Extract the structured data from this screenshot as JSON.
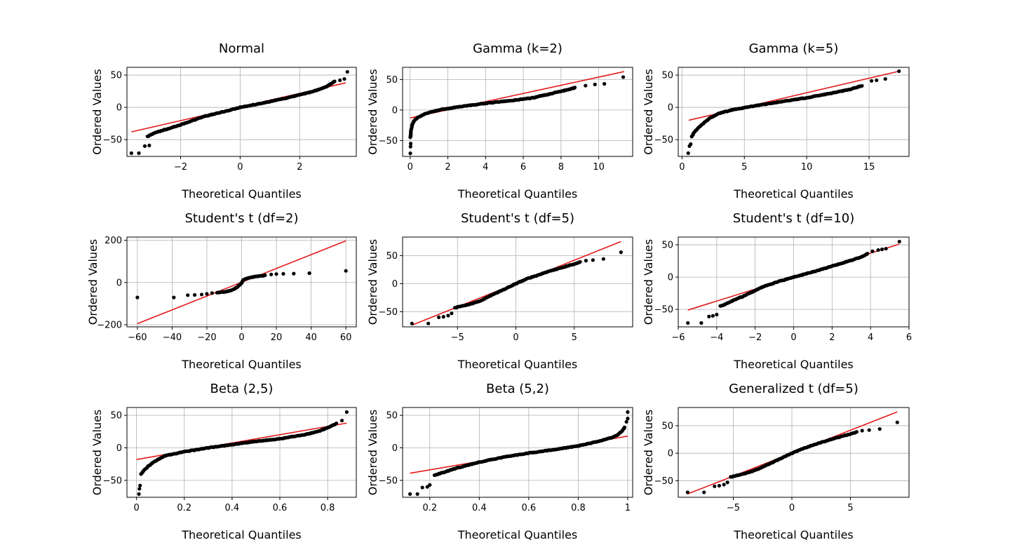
{
  "figure": {
    "colors": {
      "points": "#000000",
      "fit_line": "#e31a1c",
      "grid": "#b0b0b0"
    }
  },
  "chart_data": [
    {
      "type": "scatter",
      "title": "Normal",
      "xlabel": "Theoretical Quantiles",
      "ylabel": "Ordered Values",
      "xlim": [
        -3.8,
        3.9
      ],
      "ylim": [
        -76,
        62
      ],
      "xticks": [
        -2,
        0,
        2
      ],
      "yticks": [
        -50,
        0,
        50
      ],
      "grid": true,
      "fit_line": [
        [
          -3.65,
          -38
        ],
        [
          3.55,
          38
        ]
      ],
      "curve": [
        [
          -3.1,
          -45
        ],
        [
          -2.9,
          -40
        ],
        [
          -2,
          -27
        ],
        [
          -1.2,
          -14
        ],
        [
          -0.5,
          -6
        ],
        [
          0,
          0
        ],
        [
          0.8,
          7
        ],
        [
          1.6,
          15
        ],
        [
          2.4,
          24
        ],
        [
          2.9,
          32
        ],
        [
          3.1,
          38
        ],
        [
          3.2,
          41
        ]
      ],
      "outliers": [
        [
          -3.65,
          -71
        ],
        [
          -3.4,
          -71
        ],
        [
          -3.2,
          -60
        ],
        [
          -3.05,
          -59
        ],
        [
          3.35,
          42
        ],
        [
          3.5,
          44
        ],
        [
          3.6,
          55
        ]
      ]
    },
    {
      "type": "scatter",
      "title": "Gamma (k=2)",
      "xlabel": "Theoretical Quantiles",
      "ylabel": "Ordered Values",
      "xlim": [
        -0.4,
        11.8
      ],
      "ylim": [
        -76,
        70
      ],
      "xticks": [
        0,
        2,
        4,
        6,
        8,
        10
      ],
      "yticks": [
        -50,
        0,
        50
      ],
      "grid": true,
      "fit_line": [
        [
          0,
          -13
        ],
        [
          11.35,
          63
        ]
      ],
      "curve": [
        [
          0.02,
          -45
        ],
        [
          0.05,
          -35
        ],
        [
          0.1,
          -25
        ],
        [
          0.2,
          -18
        ],
        [
          0.4,
          -12
        ],
        [
          0.8,
          -6
        ],
        [
          1.5,
          0
        ],
        [
          2.5,
          5
        ],
        [
          4,
          11
        ],
        [
          5.5,
          16
        ],
        [
          6.5,
          20
        ],
        [
          7.5,
          27
        ],
        [
          8.3,
          33
        ],
        [
          8.8,
          37
        ]
      ],
      "outliers": [
        [
          0.01,
          -71
        ],
        [
          0.02,
          -60
        ],
        [
          0.03,
          -55
        ],
        [
          9.3,
          40
        ],
        [
          9.8,
          42
        ],
        [
          10.3,
          43
        ],
        [
          11.3,
          54
        ]
      ]
    },
    {
      "type": "scatter",
      "title": "Gamma (k=5)",
      "xlabel": "Theoretical Quantiles",
      "ylabel": "Ordered Values",
      "xlim": [
        -0.3,
        18.2
      ],
      "ylim": [
        -76,
        62
      ],
      "xticks": [
        0,
        5,
        10,
        15
      ],
      "yticks": [
        -50,
        0,
        50
      ],
      "grid": true,
      "fit_line": [
        [
          0.55,
          -20
        ],
        [
          17.4,
          56
        ]
      ],
      "curve": [
        [
          0.8,
          -45
        ],
        [
          1.0,
          -38
        ],
        [
          1.3,
          -32
        ],
        [
          1.7,
          -25
        ],
        [
          2.2,
          -17
        ],
        [
          3,
          -9
        ],
        [
          4,
          -4
        ],
        [
          6,
          3
        ],
        [
          8,
          9
        ],
        [
          10,
          15
        ],
        [
          12,
          22
        ],
        [
          13.5,
          28
        ],
        [
          14.5,
          34
        ]
      ],
      "outliers": [
        [
          0.5,
          -71
        ],
        [
          0.6,
          -60
        ],
        [
          0.7,
          -57
        ],
        [
          15.2,
          41
        ],
        [
          15.6,
          42
        ],
        [
          16.3,
          44
        ],
        [
          17.4,
          56
        ]
      ]
    },
    {
      "type": "scatter",
      "title": "Student's t (df=2)",
      "xlabel": "Theoretical Quantiles",
      "ylabel": "Ordered Values",
      "xlim": [
        -66,
        66
      ],
      "ylim": [
        -210,
        215
      ],
      "xticks": [
        -60,
        -40,
        -20,
        0,
        20,
        40,
        60
      ],
      "yticks": [
        -200,
        0,
        200
      ],
      "grid": true,
      "fit_line": [
        [
          -60,
          -195
        ],
        [
          60,
          197
        ]
      ],
      "curve": [
        [
          -14,
          -48
        ],
        [
          -10,
          -44
        ],
        [
          -6,
          -38
        ],
        [
          -3,
          -25
        ],
        [
          -1,
          -10
        ],
        [
          0,
          0
        ],
        [
          1,
          12
        ],
        [
          3,
          20
        ],
        [
          6,
          25
        ],
        [
          10,
          30
        ],
        [
          14,
          35
        ]
      ],
      "outliers": [
        [
          -60,
          -71
        ],
        [
          -39,
          -71
        ],
        [
          -31,
          -60
        ],
        [
          -27,
          -59
        ],
        [
          -23,
          -57
        ],
        [
          -20,
          -54
        ],
        [
          -17,
          -50
        ],
        [
          17,
          38
        ],
        [
          20,
          40
        ],
        [
          24,
          41
        ],
        [
          30,
          42
        ],
        [
          39,
          44
        ],
        [
          60,
          55
        ]
      ]
    },
    {
      "type": "scatter",
      "title": "Student's t (df=5)",
      "xlabel": "Theoretical Quantiles",
      "ylabel": "Ordered Values",
      "xlim": [
        -9.7,
        10
      ],
      "ylim": [
        -77,
        83
      ],
      "xticks": [
        -5,
        0,
        5
      ],
      "yticks": [
        -50,
        0,
        50
      ],
      "grid": true,
      "fit_line": [
        [
          -8.9,
          -74
        ],
        [
          9,
          75
        ]
      ],
      "curve": [
        [
          -5.2,
          -43
        ],
        [
          -4,
          -37
        ],
        [
          -3,
          -30
        ],
        [
          -2,
          -20
        ],
        [
          -1,
          -10
        ],
        [
          0,
          0
        ],
        [
          1,
          9
        ],
        [
          2,
          16
        ],
        [
          3,
          23
        ],
        [
          4,
          29
        ],
        [
          5,
          35
        ],
        [
          5.6,
          39
        ]
      ],
      "outliers": [
        [
          -8.9,
          -71
        ],
        [
          -7.5,
          -71
        ],
        [
          -6.6,
          -60
        ],
        [
          -6.2,
          -59
        ],
        [
          -5.8,
          -57
        ],
        [
          -5.5,
          -53
        ],
        [
          6,
          41
        ],
        [
          6.6,
          42
        ],
        [
          7.5,
          44
        ],
        [
          9,
          56
        ]
      ]
    },
    {
      "type": "scatter",
      "title": "Student's t (df=10)",
      "xlabel": "Theoretical Quantiles",
      "ylabel": "Ordered Values",
      "xlim": [
        -6,
        6
      ],
      "ylim": [
        -77,
        62
      ],
      "xticks": [
        -6,
        -4,
        -2,
        0,
        2,
        4,
        6
      ],
      "yticks": [
        -50,
        0,
        50
      ],
      "grid": true,
      "fit_line": [
        [
          -5.5,
          -51
        ],
        [
          5.5,
          51
        ]
      ],
      "curve": [
        [
          -3.8,
          -45
        ],
        [
          -3.2,
          -37
        ],
        [
          -2.5,
          -28
        ],
        [
          -1.6,
          -15
        ],
        [
          -0.8,
          -7
        ],
        [
          0,
          0
        ],
        [
          1,
          8
        ],
        [
          2,
          17
        ],
        [
          3,
          26
        ],
        [
          3.6,
          32
        ],
        [
          3.9,
          37
        ]
      ],
      "outliers": [
        [
          -5.5,
          -71
        ],
        [
          -4.8,
          -71
        ],
        [
          -4.4,
          -61
        ],
        [
          -4.2,
          -60
        ],
        [
          -4.0,
          -58
        ],
        [
          4.1,
          40
        ],
        [
          4.4,
          42
        ],
        [
          4.6,
          43
        ],
        [
          4.8,
          44
        ],
        [
          5.5,
          55
        ]
      ]
    },
    {
      "type": "scatter",
      "title": "Beta (2,5)",
      "xlabel": "Theoretical Quantiles",
      "ylabel": "Ordered Values",
      "xlim": [
        -0.04,
        0.92
      ],
      "ylim": [
        -76,
        62
      ],
      "xticks": [
        0.0,
        0.2,
        0.4,
        0.6,
        0.8
      ],
      "yticks": [
        -50,
        0,
        50
      ],
      "grid": true,
      "fit_line": [
        [
          0,
          -18
        ],
        [
          0.88,
          38
        ]
      ],
      "curve": [
        [
          0.02,
          -40
        ],
        [
          0.03,
          -35
        ],
        [
          0.05,
          -28
        ],
        [
          0.08,
          -20
        ],
        [
          0.12,
          -12
        ],
        [
          0.2,
          -6
        ],
        [
          0.3,
          0
        ],
        [
          0.4,
          5
        ],
        [
          0.5,
          10
        ],
        [
          0.6,
          14
        ],
        [
          0.7,
          20
        ],
        [
          0.76,
          25
        ],
        [
          0.8,
          31
        ],
        [
          0.84,
          38
        ]
      ],
      "outliers": [
        [
          0.01,
          -71
        ],
        [
          0.012,
          -63
        ],
        [
          0.015,
          -58
        ],
        [
          0.86,
          42
        ],
        [
          0.88,
          55
        ]
      ]
    },
    {
      "type": "scatter",
      "title": "Beta (5,2)",
      "xlabel": "Theoretical Quantiles",
      "ylabel": "Ordered Values",
      "xlim": [
        0.09,
        1.02
      ],
      "ylim": [
        -76,
        62
      ],
      "xticks": [
        0.2,
        0.4,
        0.6,
        0.8,
        1.0
      ],
      "yticks": [
        -50,
        0,
        50
      ],
      "grid": true,
      "fit_line": [
        [
          0.12,
          -39
        ],
        [
          1.0,
          18
        ]
      ],
      "curve": [
        [
          0.22,
          -42
        ],
        [
          0.3,
          -32
        ],
        [
          0.4,
          -22
        ],
        [
          0.5,
          -14
        ],
        [
          0.6,
          -8
        ],
        [
          0.7,
          -3
        ],
        [
          0.8,
          3
        ],
        [
          0.88,
          10
        ],
        [
          0.93,
          15
        ],
        [
          0.96,
          20
        ],
        [
          0.98,
          27
        ],
        [
          0.99,
          33
        ]
      ],
      "outliers": [
        [
          0.12,
          -71
        ],
        [
          0.15,
          -71
        ],
        [
          0.17,
          -61
        ],
        [
          0.19,
          -60
        ],
        [
          0.2,
          -57
        ],
        [
          0.995,
          40
        ],
        [
          1.0,
          45
        ],
        [
          1.0,
          55
        ]
      ]
    },
    {
      "type": "scatter",
      "title": "Generalized t (df=5)",
      "xlabel": "Theoretical Quantiles",
      "ylabel": "Ordered Values",
      "xlim": [
        -9.7,
        10
      ],
      "ylim": [
        -80,
        83
      ],
      "xticks": [
        -5,
        0,
        5
      ],
      "yticks": [
        -50,
        0,
        50
      ],
      "grid": true,
      "fit_line": [
        [
          -8.9,
          -74
        ],
        [
          9,
          75
        ]
      ],
      "curve": [
        [
          -5.2,
          -43
        ],
        [
          -4,
          -37
        ],
        [
          -3,
          -30
        ],
        [
          -2,
          -20
        ],
        [
          -1,
          -10
        ],
        [
          0,
          0
        ],
        [
          1,
          9
        ],
        [
          2,
          16
        ],
        [
          3,
          23
        ],
        [
          4,
          29
        ],
        [
          5,
          35
        ],
        [
          5.6,
          39
        ]
      ],
      "outliers": [
        [
          -8.9,
          -71
        ],
        [
          -7.5,
          -71
        ],
        [
          -6.6,
          -60
        ],
        [
          -6.2,
          -59
        ],
        [
          -5.8,
          -57
        ],
        [
          -5.5,
          -53
        ],
        [
          6,
          41
        ],
        [
          6.6,
          42
        ],
        [
          7.5,
          44
        ],
        [
          9,
          56
        ]
      ]
    }
  ]
}
